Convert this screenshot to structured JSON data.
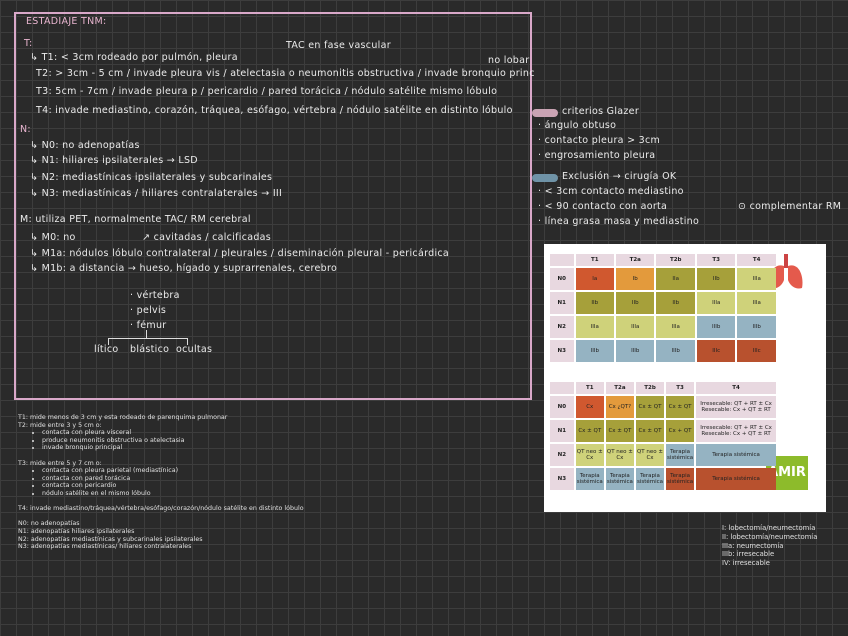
{
  "notes": {
    "title": "ESTADIAJE TNM:",
    "t_heading": "T:",
    "t_lines": [
      "↳ T1: < 3cm rodeado por pulmón, pleura",
      "T2: > 3cm - 5 cm / invade pleura vis / atelectasia o neumonitis obstructiva / invade bronquio princ",
      "T3: 5cm - 7cm / invade pleura p / pericardio / pared torácica / nódulo satélite mismo lóbulo",
      "T4: invade mediastino, corazón, tráquea, esófago, vértebra / nódulo satélite en distinto lóbulo"
    ],
    "annotations": [
      "TAC en fase vascular",
      "no lobar"
    ],
    "n_heading": "N:",
    "n_lines": [
      "↳ N0: no adenopatías",
      "↳ N1: hiliares ipsilaterales → LSD",
      "↳ N2: mediastínicas ipsilaterales y subcarinales",
      "↳ N3: mediastínicas / hiliares contralaterales → III"
    ],
    "m_heading": "M: utiliza PET, normalmente TAC/ RM cerebral",
    "m_lines": [
      "↳ M0: no",
      "↳ M1a: nódulos lóbulo contralateral / pleurales / diseminación pleural - pericárdica",
      "↳ M1b: a distancia → hueso, hígado y suprarrenales, cerebro"
    ],
    "m0_note": "↗ cavitadas / calcificadas",
    "bone_sites": [
      "· vértebra",
      "· pelvis",
      "· fémur"
    ],
    "bone_types": [
      "lítico",
      "blástico",
      "ocultas"
    ]
  },
  "side_notes": [
    "criterios Glazer",
    "· ángulo obtuso",
    "· contacto pleura > 3cm",
    "· engrosamiento pleura",
    "Exclusión → cirugía OK",
    "· < 3cm contacto mediastino",
    "· < 90 contacto con aorta",
    "· línea grasa masa y mediastino",
    "⊙ complementar RM"
  ],
  "staging_table": {
    "columns": [
      "T1",
      "T2a",
      "T2b",
      "T3",
      "T4"
    ],
    "rows": [
      {
        "label": "N0",
        "cells": [
          "Ia",
          "Ib",
          "IIa",
          "IIb",
          "IIIa"
        ]
      },
      {
        "label": "N1",
        "cells": [
          "IIb",
          "IIb",
          "IIb",
          "IIIa",
          "IIIa"
        ]
      },
      {
        "label": "N2",
        "cells": [
          "IIIa",
          "IIIa",
          "IIIa",
          "IIIb",
          "IIIb"
        ]
      },
      {
        "label": "N3",
        "cells": [
          "IIIb",
          "IIIb",
          "IIIb",
          "IIIc",
          "IIIc"
        ]
      }
    ]
  },
  "treatment_table": {
    "columns": [
      "T1",
      "T2a",
      "T2b",
      "T3",
      "T4"
    ],
    "rows": [
      {
        "label": "N0",
        "cells": [
          "Cx",
          "Cx ¿QT?",
          "Cx ± QT",
          "Cx ± QT",
          "Irresecable: QT + RT ± Cx Resecable: Cx + QT ± RT"
        ]
      },
      {
        "label": "N1",
        "cells": [
          "Cx ± QT",
          "Cx ± QT",
          "Cx ± QT",
          "Cx + QT",
          "Irresecable: QT + RT ± Cx Resecable: Cx + QT ± RT"
        ]
      },
      {
        "label": "N2",
        "cells": [
          "QT neo ± Cx",
          "QT neo ± Cx",
          "QT neo ± Cx",
          "Terapia sistémica",
          "Terapia sistémica"
        ]
      },
      {
        "label": "N3",
        "cells": [
          "Terapia sistémica",
          "Terapia sistémica",
          "Terapia sistémica",
          "Terapia sistémica",
          "Terapia sistémica"
        ]
      }
    ]
  },
  "logo": "AMIR",
  "typed_notes": [
    [
      {
        "text": "T1: mide menos de 3 cm y esta rodeado de parenquima pulmonar",
        "bullets": []
      },
      {
        "text": "T2: mide entre 3 y 5 cm o:",
        "bullets": [
          "contacta con pleura visceral",
          "produce neumonitis obstructiva o atelectasia",
          "invade bronquio principal"
        ]
      }
    ],
    [
      {
        "text": "T3: mide entre 5 y 7 cm o:",
        "bullets": [
          "contacta con pleura parietal (mediastínica)",
          "contacta con pared torácica",
          "contacta con pericardio",
          "nódulo satélite en el mismo lóbulo"
        ]
      }
    ],
    [
      {
        "text": "T4: invade mediastino/tráquea/vértebra/esófago/corazón/nódulo satélite en distinto lóbulo",
        "bullets": []
      }
    ],
    [
      {
        "text": "N0: no adenopatías",
        "bullets": []
      },
      {
        "text": "N1: adenopatías hiliares ipsilaterales",
        "bullets": []
      },
      {
        "text": "N2: adenopatías mediastínicas y subcarinales ipsilaterales",
        "bullets": []
      },
      {
        "text": "N3: adenopatías mediastínicas/ hiliares contralaterales",
        "bullets": []
      }
    ]
  ],
  "surgery_list": [
    "I: lobectomía/neumectomía",
    "II: lobectomía/neumectomía",
    "IIIa: neumectomía",
    "IIIb: irresecable",
    "IV: irresecable"
  ]
}
